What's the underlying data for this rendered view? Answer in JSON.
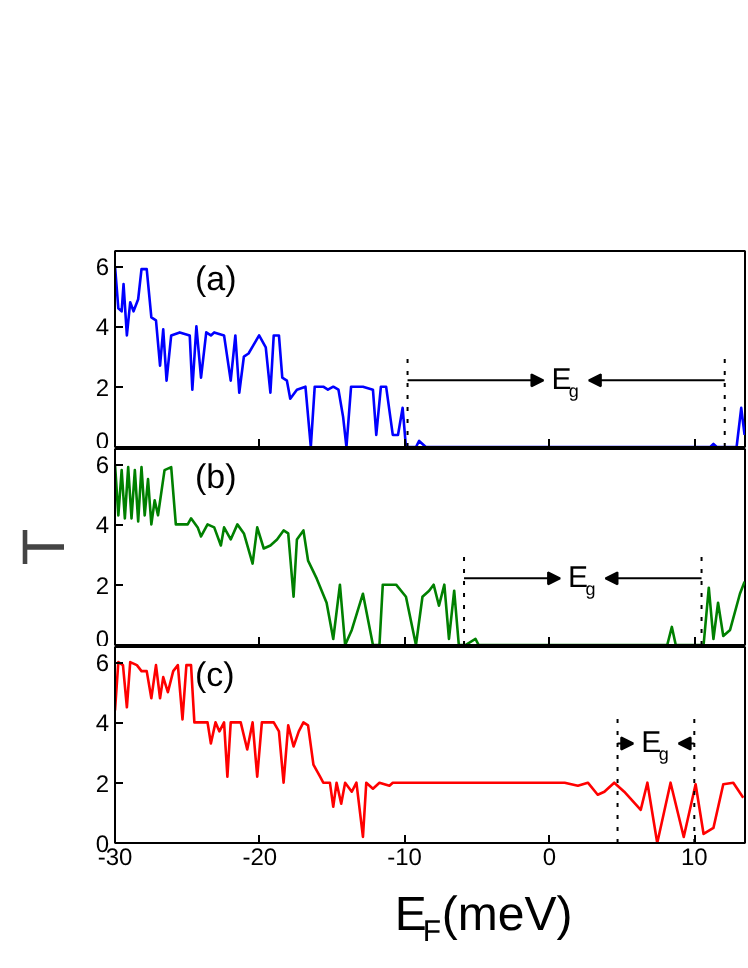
{
  "chart_data": [
    {
      "type": "line",
      "annotations": [
        "(a)",
        "E$_{g}$"
      ],
      "ref_lines": [
        {
          "axis": "x",
          "value": -9.8,
          "color": "#000000",
          "line_style": "dotted"
        },
        {
          "axis": "x",
          "value": 12.1,
          "color": "#000000",
          "line_style": "dotted"
        }
      ],
      "series": [
        {
          "color": "#0000ff",
          "x": [
            -30,
            -29.77,
            -29.54,
            -29.41,
            -29.18,
            -28.95,
            -28.72,
            -28.4,
            -28.17,
            -27.81,
            -27.49,
            -27.17,
            -26.89,
            -26.67,
            -26.44,
            -26.12,
            -25.53,
            -24.84,
            -24.66,
            -24.38,
            -24.06,
            -23.7,
            -23.38,
            -23.15,
            -22.47,
            -22.01,
            -21.69,
            -21.42,
            -21.1,
            -20.78,
            -20.05,
            -19.59,
            -19.27,
            -19.04,
            -18.68,
            -18.45,
            -18.13,
            -17.9,
            -17.44,
            -16.85,
            -16.48,
            -16.21,
            -15.62,
            -15.3,
            -14.93,
            -14.57,
            -14.25,
            -14.02,
            -13.7,
            -12.88,
            -12.19,
            -11.96,
            -11.64,
            -11.28,
            -10.82,
            -10.46,
            -10.14,
            -9.91,
            -9.22,
            -9.0,
            -8.54,
            11.1,
            11.32,
            11.55,
            12.92,
            13.24,
            13.47
          ],
          "values": [
            6.0,
            4.6,
            4.5,
            5.4,
            3.7,
            4.8,
            4.5,
            4.9,
            5.9,
            5.9,
            4.3,
            4.2,
            2.7,
            3.9,
            2.2,
            3.7,
            3.8,
            3.7,
            1.9,
            4.0,
            2.3,
            3.8,
            3.7,
            3.8,
            3.7,
            2.2,
            3.7,
            1.8,
            3.0,
            3.1,
            3.7,
            3.3,
            1.8,
            3.7,
            3.7,
            2.3,
            2.2,
            1.6,
            1.9,
            2.0,
            0,
            2.0,
            2.0,
            1.9,
            2.0,
            1.9,
            1.0,
            0,
            2.0,
            2.0,
            1.9,
            0.4,
            2.0,
            2.0,
            0.4,
            0.4,
            1.3,
            0,
            0,
            0.2,
            0,
            0,
            0.1,
            0,
            0,
            1.3,
            0.4
          ]
        }
      ],
      "xlim": [
        -30,
        13.5
      ],
      "xticks": [
        -30,
        -20,
        -10,
        0,
        10
      ],
      "ylim": [
        0,
        6.5
      ],
      "yticks": [
        0,
        2,
        4,
        6
      ],
      "tick_labels": "y",
      "grid": false
    },
    {
      "type": "line",
      "ylabel": "T",
      "annotations": [
        "(b)",
        "E$_{g}$"
      ],
      "ref_lines": [
        {
          "axis": "x",
          "value": -5.9,
          "color": "#000000",
          "line_style": "dotted"
        },
        {
          "axis": "x",
          "value": 10.5,
          "color": "#000000",
          "line_style": "dotted"
        }
      ],
      "series": [
        {
          "color": "#008000",
          "x": [
            -30,
            -29.77,
            -29.54,
            -29.32,
            -29.09,
            -28.86,
            -28.63,
            -28.4,
            -28.17,
            -27.95,
            -27.72,
            -27.49,
            -27.26,
            -27.03,
            -26.58,
            -26.12,
            -25.8,
            -24.98,
            -24.75,
            -24.29,
            -24.06,
            -23.61,
            -23.15,
            -22.69,
            -22.47,
            -22.01,
            -21.55,
            -21.1,
            -20.5,
            -20.18,
            -19.73,
            -19.27,
            -18.81,
            -18.36,
            -18.04,
            -17.67,
            -17.44,
            -16.99,
            -16.67,
            -16.07,
            -15.39,
            -14.93,
            -14.47,
            -14.11,
            -13.65,
            -12.88,
            -12.19,
            -11.74,
            -11.51,
            -10.59,
            -9.91,
            -9.22,
            -8.77,
            -8.31,
            -8.0,
            -7.63,
            -7.26,
            -6.94,
            -6.58,
            -6.26,
            -5.8,
            -5.11,
            -4.89,
            8.13,
            8.45,
            8.72,
            10.64,
            11.0,
            11.32,
            11.64,
            12.0,
            12.47,
            13.15,
            13.47
          ],
          "values": [
            6.0,
            4.3,
            5.8,
            4.2,
            5.9,
            4.2,
            5.8,
            4.1,
            5.9,
            4.3,
            5.5,
            4.0,
            4.8,
            4.3,
            5.8,
            5.9,
            4.0,
            4.0,
            4.2,
            3.9,
            3.6,
            4.0,
            3.9,
            3.3,
            3.9,
            3.5,
            4.0,
            3.7,
            2.7,
            3.9,
            3.2,
            3.3,
            3.5,
            3.8,
            3.7,
            1.6,
            3.5,
            3.8,
            2.8,
            2.2,
            1.4,
            0.2,
            2.0,
            0,
            0.5,
            1.7,
            0,
            0,
            2.0,
            2.0,
            1.6,
            0,
            1.6,
            1.8,
            2.0,
            1.3,
            2.0,
            0.2,
            1.8,
            0,
            0,
            0.2,
            0,
            0,
            0.6,
            0,
            0,
            1.9,
            0.2,
            1.4,
            0.3,
            0.5,
            1.7,
            2.1
          ]
        }
      ],
      "xlim": [
        -30,
        13.5
      ],
      "xticks": [
        -30,
        -20,
        -10,
        0,
        10
      ],
      "ylim": [
        0,
        6.5
      ],
      "yticks": [
        0,
        2,
        4,
        6
      ],
      "tick_labels": "y",
      "grid": false
    },
    {
      "type": "line",
      "xlabel": "E$_{F}$(meV)",
      "annotations": [
        "(c)",
        "E$_{g}$"
      ],
      "ref_lines": [
        {
          "axis": "x",
          "value": 4.7,
          "color": "#000000",
          "line_style": "dotted"
        },
        {
          "axis": "x",
          "value": 10.0,
          "color": "#000000",
          "line_style": "dotted"
        }
      ],
      "series": [
        {
          "color": "#ff0000",
          "x": [
            -30,
            -29.77,
            -29.45,
            -29.18,
            -28.95,
            -28.49,
            -28.17,
            -27.81,
            -27.49,
            -27.17,
            -26.89,
            -26.67,
            -26.35,
            -25.98,
            -25.66,
            -25.34,
            -25.07,
            -24.75,
            -24.52,
            -23.61,
            -23.38,
            -23.06,
            -22.79,
            -22.47,
            -22.24,
            -22.01,
            -21.32,
            -20.87,
            -20.5,
            -20.18,
            -19.86,
            -19.04,
            -18.68,
            -18.36,
            -18.04,
            -17.67,
            -17.31,
            -16.99,
            -16.67,
            -16.3,
            -15.84,
            -15.62,
            -15.16,
            -14.93,
            -14.7,
            -14.38,
            -14.11,
            -13.65,
            -13.33,
            -12.88,
            -12.65,
            -12.19,
            -11.74,
            -11.05,
            -10.82,
            1.05,
            1.96,
            2.65,
            3.33,
            3.79,
            4.47,
            5.16,
            6.3,
            6.76,
            7.44,
            8.36,
            9.27,
            10.09,
            10.64,
            11.32,
            12.0,
            12.69,
            13.38
          ],
          "values": [
            4.4,
            6.0,
            5.9,
            4.5,
            6.0,
            5.9,
            5.7,
            5.7,
            4.8,
            5.9,
            4.8,
            5.5,
            5.0,
            5.7,
            5.9,
            4.1,
            5.9,
            5.9,
            4.0,
            4.0,
            3.3,
            4.0,
            3.7,
            4.0,
            2.2,
            4.0,
            4.0,
            3.1,
            4.0,
            2.2,
            4.0,
            4.0,
            3.7,
            2.0,
            3.9,
            3.2,
            3.7,
            4.0,
            3.9,
            2.6,
            2.2,
            2.0,
            2.0,
            1.2,
            2.0,
            1.3,
            2.0,
            1.7,
            2.0,
            0.2,
            2.0,
            1.8,
            2.0,
            1.9,
            2.0,
            2.0,
            1.9,
            2.0,
            1.6,
            1.7,
            2.0,
            1.7,
            1.1,
            2.0,
            0,
            2.0,
            0.2,
            1.95,
            0.3,
            0.5,
            1.95,
            2.0,
            1.5
          ]
        }
      ],
      "xlim": [
        -30,
        13.5
      ],
      "xticks": [
        -30,
        -20,
        -10,
        0,
        10
      ],
      "ylim": [
        0,
        6.5
      ],
      "yticks": [
        0,
        2,
        4,
        6
      ],
      "grid": false
    }
  ]
}
